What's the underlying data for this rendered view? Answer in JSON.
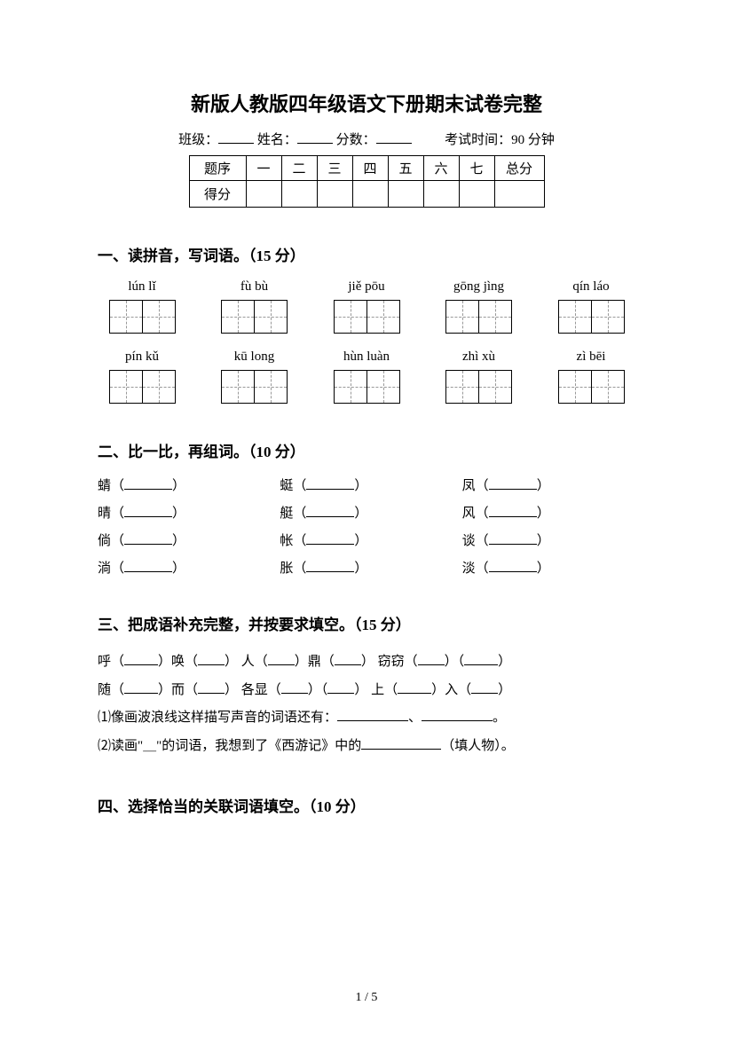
{
  "title": "新版人教版四年级语文下册期末试卷完整",
  "info": {
    "class_label": "班级：",
    "name_label": "姓名：",
    "score_label": "分数：",
    "exam_time": "考试时间：90 分钟"
  },
  "score_table": {
    "header_first": "题序",
    "footer_first": "得分",
    "cols": [
      "一",
      "二",
      "三",
      "四",
      "五",
      "六",
      "七"
    ],
    "total_label": "总分"
  },
  "q1": {
    "header": "一、读拼音，写词语。（15 分）",
    "row1": [
      "lún lǐ",
      "fù bù",
      "jiě pōu",
      "gōng jìng",
      "qín láo"
    ],
    "row2": [
      "pín kǔ",
      "kū long",
      "hùn luàn",
      "zhì xù",
      "zì bēi"
    ]
  },
  "q2": {
    "header": "二、比一比，再组词。（10 分）",
    "items": [
      "蜻",
      "蜓",
      "凤",
      "晴",
      "艇",
      "风",
      "倘",
      "帐",
      "谈",
      "淌",
      "胀",
      "淡"
    ]
  },
  "q3": {
    "header": "三、把成语补充完整，并按要求填空。（15 分）",
    "line1_a": "呼（",
    "line1_b": "）唤（",
    "line1_c": "）  人（",
    "line1_d": "）鼎（",
    "line1_e": "）  窃窃（",
    "line1_f": "）（",
    "line1_g": "）",
    "line2_a": "随（",
    "line2_b": "）而（",
    "line2_c": "）  各显（",
    "line2_d": "）（",
    "line2_e": "）  上（",
    "line2_f": "）入（",
    "line2_g": "）",
    "sub1_pre": "⑴像画波浪线这样描写声音的词语还有：",
    "sub1_mid": "、",
    "sub1_end": "。",
    "sub2_pre": "⑵读画\"＿\"的词语，我想到了《西游记》中的",
    "sub2_end": "（填人物）。"
  },
  "q4_header": "四、选择恰当的关联词语填空。（10 分）",
  "footer": "1 / 5"
}
